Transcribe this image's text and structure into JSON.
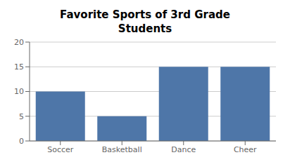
{
  "chart_data": {
    "type": "bar",
    "title": "Favorite Sports of 3rd Grade\nStudents",
    "categories": [
      "Soccer",
      "Basketball",
      "Dance",
      "Cheer"
    ],
    "values": [
      10,
      5,
      15,
      15
    ],
    "color": "#4e76a8",
    "ylim": [
      0,
      20
    ],
    "yticks": [
      0,
      5,
      10,
      15,
      20
    ],
    "grid": true
  }
}
